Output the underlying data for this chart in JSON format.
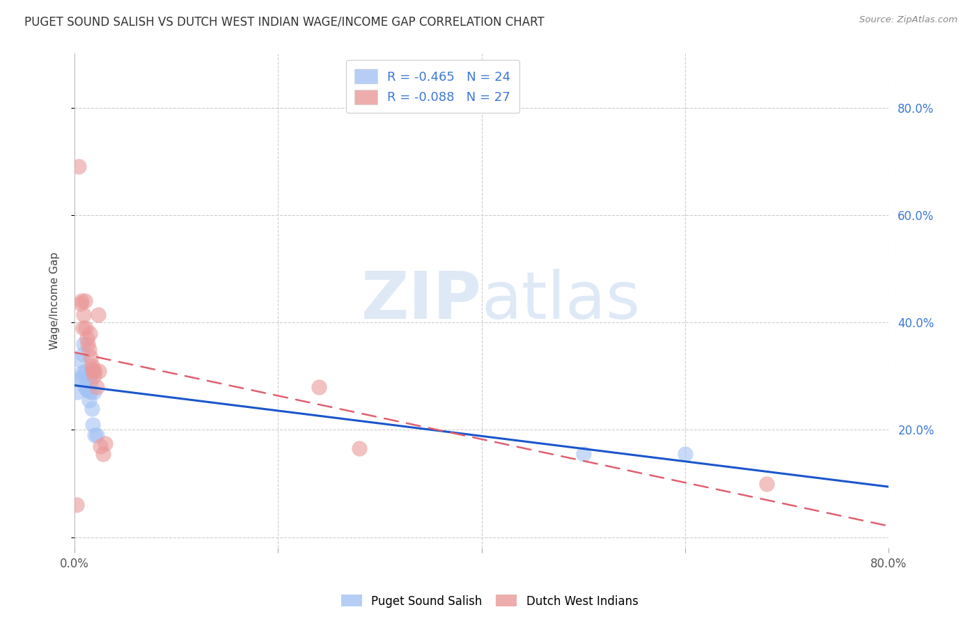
{
  "title": "PUGET SOUND SALISH VS DUTCH WEST INDIAN WAGE/INCOME GAP CORRELATION CHART",
  "source": "Source: ZipAtlas.com",
  "ylabel": "Wage/Income Gap",
  "xlim": [
    0.0,
    0.8
  ],
  "ylim": [
    -0.02,
    0.9
  ],
  "blue_R": -0.465,
  "blue_N": 24,
  "pink_R": -0.088,
  "pink_N": 27,
  "blue_color": "#a4c2f4",
  "pink_color": "#ea9999",
  "blue_line_color": "#1a56cc",
  "pink_line_color": "#e06070",
  "legend_label_blue": "Puget Sound Salish",
  "legend_label_pink": "Dutch West Indians",
  "legend_text_color": "#3c78d8",
  "watermark_zip": "ZIP",
  "watermark_atlas": "atlas",
  "background_color": "#ffffff",
  "grid_color": "#cccccc",
  "blue_x": [
    0.003,
    0.004,
    0.005,
    0.006,
    0.007,
    0.008,
    0.009,
    0.01,
    0.01,
    0.011,
    0.012,
    0.012,
    0.013,
    0.014,
    0.015,
    0.016,
    0.016,
    0.017,
    0.018,
    0.019,
    0.02,
    0.022,
    0.5,
    0.6
  ],
  "blue_y": [
    0.27,
    0.295,
    0.33,
    0.295,
    0.305,
    0.34,
    0.36,
    0.31,
    0.28,
    0.305,
    0.295,
    0.275,
    0.275,
    0.255,
    0.305,
    0.29,
    0.27,
    0.24,
    0.21,
    0.27,
    0.19,
    0.19,
    0.155,
    0.155
  ],
  "pink_x": [
    0.002,
    0.004,
    0.006,
    0.007,
    0.008,
    0.009,
    0.01,
    0.011,
    0.012,
    0.013,
    0.014,
    0.015,
    0.016,
    0.017,
    0.018,
    0.018,
    0.019,
    0.02,
    0.022,
    0.023,
    0.024,
    0.025,
    0.028,
    0.03,
    0.68,
    0.24,
    0.28
  ],
  "pink_y": [
    0.06,
    0.69,
    0.435,
    0.44,
    0.39,
    0.415,
    0.44,
    0.39,
    0.37,
    0.36,
    0.35,
    0.38,
    0.335,
    0.32,
    0.315,
    0.31,
    0.3,
    0.31,
    0.28,
    0.415,
    0.31,
    0.17,
    0.155,
    0.175,
    0.1,
    0.28,
    0.165
  ]
}
